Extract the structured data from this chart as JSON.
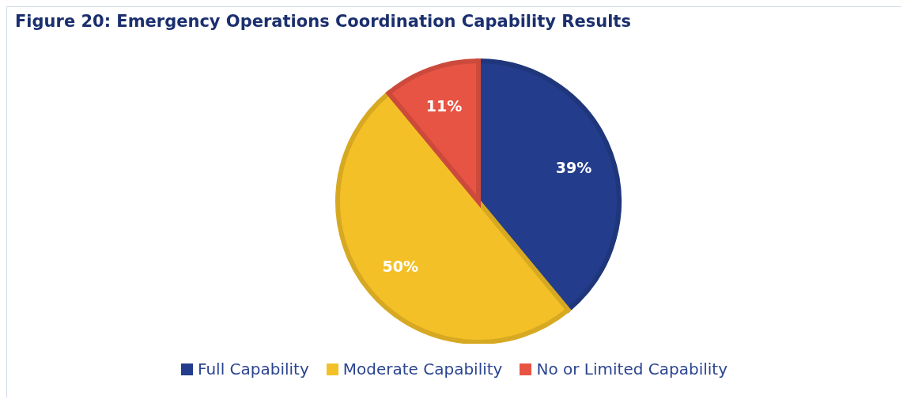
{
  "chart_data": {
    "type": "pie",
    "title": "Figure 20: Emergency Operations Coordination Capability Results",
    "categories": [
      "Full Capability",
      "Moderate Capability",
      "No or Limited Capability"
    ],
    "values": [
      39,
      50,
      11
    ],
    "colors": [
      "#233d8c",
      "#f4c027",
      "#e85444"
    ],
    "value_labels": [
      "39%",
      "50%",
      "11%"
    ],
    "legend": "bottom"
  }
}
